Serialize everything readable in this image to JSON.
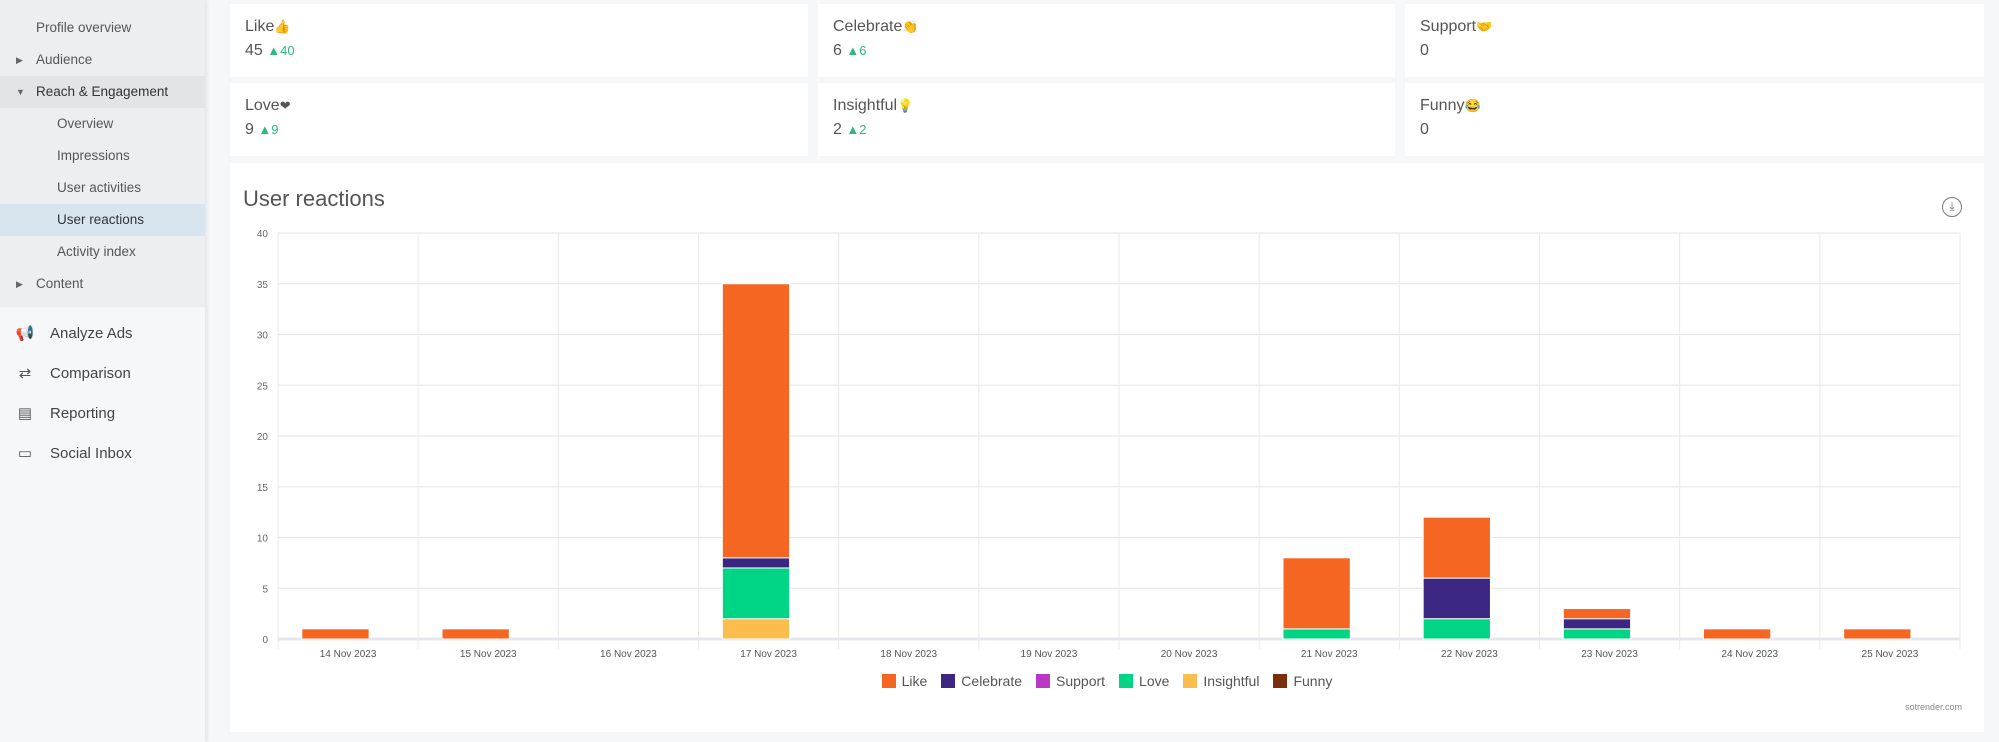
{
  "sidebar": {
    "sub": [
      {
        "label": "Profile overview",
        "type": "top"
      },
      {
        "label": "Audience",
        "type": "collapsed"
      },
      {
        "label": "Reach & Engagement",
        "type": "open"
      },
      {
        "label": "Overview",
        "type": "sub"
      },
      {
        "label": "Impressions",
        "type": "sub"
      },
      {
        "label": "User activities",
        "type": "sub"
      },
      {
        "label": "User reactions",
        "type": "sub",
        "active": true
      },
      {
        "label": "Activity index",
        "type": "sub"
      },
      {
        "label": "Content",
        "type": "collapsed"
      }
    ],
    "main": [
      {
        "label": "Analyze Ads",
        "icon": "megaphone-icon"
      },
      {
        "label": "Comparison",
        "icon": "compare-arrows-icon"
      },
      {
        "label": "Reporting",
        "icon": "report-icon"
      },
      {
        "label": "Social Inbox",
        "icon": "chat-icon"
      }
    ]
  },
  "cards": [
    {
      "title": "Like",
      "emoji": "👍",
      "value": "45",
      "delta": "40"
    },
    {
      "title": "Celebrate",
      "emoji": "👏",
      "value": "6",
      "delta": "6"
    },
    {
      "title": "Support",
      "emoji": "🤝",
      "value": "0",
      "delta": ""
    },
    {
      "title": "Love",
      "emoji": "❤",
      "value": "9",
      "delta": "9"
    },
    {
      "title": "Insightful",
      "emoji": "💡",
      "value": "2",
      "delta": "2"
    },
    {
      "title": "Funny",
      "emoji": "😂",
      "value": "0",
      "delta": ""
    }
  ],
  "panel": {
    "title": "User reactions",
    "credit": "sotrender.com"
  },
  "chart_data": {
    "type": "bar",
    "stacked": true,
    "title": "User reactions",
    "ylim": [
      0,
      40
    ],
    "yticks": [
      0,
      5,
      10,
      15,
      20,
      25,
      30,
      35,
      40
    ],
    "categories": [
      "14 Nov 2023",
      "15 Nov 2023",
      "16 Nov 2023",
      "17 Nov 2023",
      "18 Nov 2023",
      "19 Nov 2023",
      "20 Nov 2023",
      "21 Nov 2023",
      "22 Nov 2023",
      "23 Nov 2023",
      "24 Nov 2023",
      "25 Nov 2023"
    ],
    "series": [
      {
        "name": "Insightful",
        "color": "#fbbd4e",
        "values": [
          0,
          0,
          0,
          2,
          0,
          0,
          0,
          0,
          0,
          0,
          0,
          0
        ]
      },
      {
        "name": "Love",
        "color": "#00d586",
        "values": [
          0,
          0,
          0,
          5,
          0,
          0,
          0,
          1,
          2,
          1,
          0,
          0
        ]
      },
      {
        "name": "Funny",
        "color": "#7b2e0e",
        "values": [
          0,
          0,
          0,
          0,
          0,
          0,
          0,
          0,
          0,
          0,
          0,
          0
        ]
      },
      {
        "name": "Support",
        "color": "#b83ac4",
        "values": [
          0,
          0,
          0,
          0,
          0,
          0,
          0,
          0,
          0,
          0,
          0,
          0
        ]
      },
      {
        "name": "Celebrate",
        "color": "#3b2781",
        "values": [
          0,
          0,
          0,
          1,
          0,
          0,
          0,
          0,
          4,
          1,
          0,
          0
        ]
      },
      {
        "name": "Like",
        "color": "#f46622",
        "values": [
          1,
          1,
          0,
          27,
          0,
          0,
          0,
          7,
          6,
          1,
          1,
          1
        ]
      }
    ],
    "legend_order": [
      "Like",
      "Celebrate",
      "Support",
      "Love",
      "Insightful",
      "Funny"
    ],
    "legend": "bottom"
  }
}
